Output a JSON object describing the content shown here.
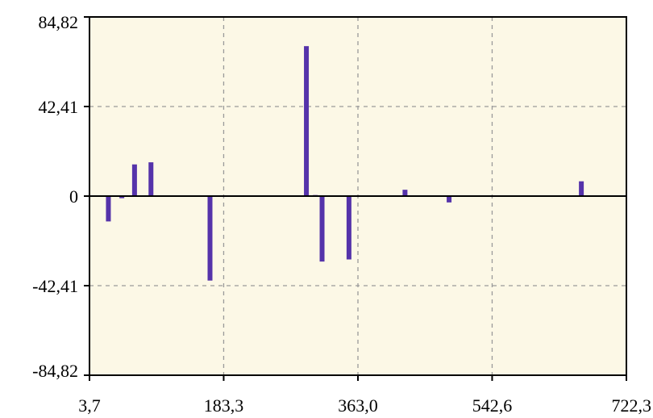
{
  "chart_data": {
    "type": "bar",
    "title": "",
    "xlabel": "",
    "ylabel": "",
    "xlim": [
      3.7,
      722.3
    ],
    "ylim": [
      -84.82,
      84.82
    ],
    "x_ticks": [
      3.7,
      183.3,
      363.0,
      542.6,
      722.3
    ],
    "x_tick_labels": [
      "3,7",
      "183,3",
      "363,0",
      "542,6",
      "722,3"
    ],
    "y_ticks": [
      84.82,
      42.41,
      0,
      -42.41,
      -84.82
    ],
    "y_tick_labels": [
      "84,82",
      "42,41",
      "0",
      "-42,41",
      "-84,82"
    ],
    "grid": true,
    "background_color": "#fcf8e6",
    "bar_color": "#5533aa",
    "series": [
      {
        "x": [
          29,
          47,
          64,
          86,
          165,
          294,
          306,
          315,
          351,
          426,
          485,
          662
        ],
        "values": [
          -12,
          -1,
          15,
          16,
          -40,
          71,
          0.5,
          -31,
          -30,
          3,
          -3,
          7
        ]
      }
    ]
  }
}
